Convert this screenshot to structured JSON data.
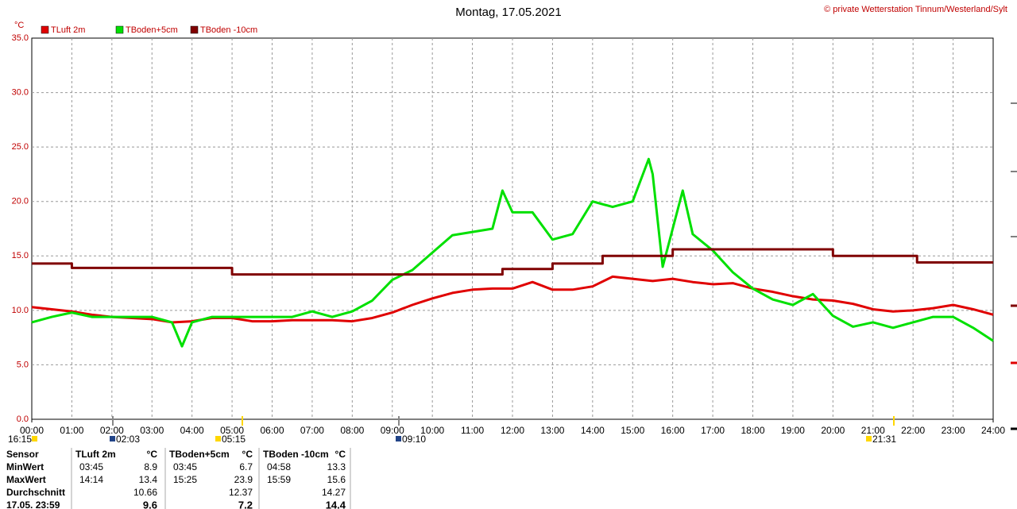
{
  "chart_data": {
    "type": "line",
    "title": "Montag, 17.05.2021",
    "copyright": "© private Wetterstation Tinnum/Westerland/Sylt",
    "y_unit": "°C",
    "grid": true,
    "ylim": [
      0,
      35
    ],
    "yticks": [
      {
        "value": 0,
        "label": "0.0"
      },
      {
        "value": 5,
        "label": "5.0"
      },
      {
        "value": 10,
        "label": "10.0"
      },
      {
        "value": 15,
        "label": "15.0"
      },
      {
        "value": 20,
        "label": "20.0"
      },
      {
        "value": 25,
        "label": "25.0"
      },
      {
        "value": 30,
        "label": "30.0"
      },
      {
        "value": 35,
        "label": "35.0"
      }
    ],
    "xlim": [
      0,
      24
    ],
    "xticks": [
      {
        "value": 0,
        "label": "00:00"
      },
      {
        "value": 1,
        "label": "01:00"
      },
      {
        "value": 2,
        "label": "02:00"
      },
      {
        "value": 3,
        "label": "03:00"
      },
      {
        "value": 4,
        "label": "04:00"
      },
      {
        "value": 5,
        "label": "05:00"
      },
      {
        "value": 6,
        "label": "06:00"
      },
      {
        "value": 7,
        "label": "07:00"
      },
      {
        "value": 8,
        "label": "08:00"
      },
      {
        "value": 9,
        "label": "09:00"
      },
      {
        "value": 10,
        "label": "10:00"
      },
      {
        "value": 11,
        "label": "11:00"
      },
      {
        "value": 12,
        "label": "12:00"
      },
      {
        "value": 13,
        "label": "13:00"
      },
      {
        "value": 14,
        "label": "14:00"
      },
      {
        "value": 15,
        "label": "15:00"
      },
      {
        "value": 16,
        "label": "16:00"
      },
      {
        "value": 17,
        "label": "17:00"
      },
      {
        "value": 18,
        "label": "18:00"
      },
      {
        "value": 19,
        "label": "19:00"
      },
      {
        "value": 20,
        "label": "20:00"
      },
      {
        "value": 21,
        "label": "21:00"
      },
      {
        "value": 22,
        "label": "22:00"
      },
      {
        "value": 23,
        "label": "23:00"
      },
      {
        "value": 24,
        "label": "24:00"
      }
    ],
    "series": [
      {
        "name": "TLuft 2m",
        "color": "#e00000",
        "x": [
          0,
          0.5,
          1,
          1.5,
          2,
          2.5,
          3,
          3.5,
          4,
          4.5,
          5,
          5.5,
          6,
          6.5,
          7,
          7.5,
          8,
          8.5,
          9,
          9.5,
          10,
          10.5,
          11,
          11.5,
          12,
          12.5,
          13,
          13.5,
          14,
          14.5,
          15,
          15.5,
          16,
          16.5,
          17,
          17.5,
          18,
          18.5,
          19,
          19.5,
          20,
          20.5,
          21,
          21.5,
          22,
          22.5,
          23,
          23.5,
          24
        ],
        "values": [
          10.3,
          10.1,
          9.9,
          9.6,
          9.4,
          9.3,
          9.2,
          8.9,
          9.0,
          9.3,
          9.3,
          9.0,
          9.0,
          9.1,
          9.1,
          9.1,
          9.0,
          9.3,
          9.8,
          10.5,
          11.1,
          11.6,
          11.9,
          12.0,
          12.0,
          12.6,
          11.9,
          11.9,
          12.2,
          13.1,
          12.9,
          12.7,
          12.9,
          12.6,
          12.4,
          12.5,
          12.0,
          11.7,
          11.3,
          11.0,
          10.9,
          10.6,
          10.1,
          9.9,
          10.0,
          10.2,
          10.5,
          10.1,
          9.6
        ]
      },
      {
        "name": "TBoden+5cm",
        "color": "#00e000",
        "x": [
          0,
          0.5,
          1,
          1.5,
          2,
          2.5,
          3,
          3.5,
          3.75,
          4,
          4.5,
          5,
          5.5,
          6,
          6.5,
          7,
          7.5,
          8,
          8.5,
          9,
          9.5,
          10,
          10.5,
          11,
          11.5,
          11.75,
          12,
          12.5,
          13,
          13.5,
          14,
          14.5,
          15,
          15.4,
          15.5,
          15.75,
          16,
          16.25,
          16.5,
          17,
          17.5,
          18,
          18.5,
          19,
          19.5,
          20,
          20.5,
          21,
          21.5,
          22,
          22.5,
          23,
          23.5,
          24
        ],
        "values": [
          8.9,
          9.4,
          9.8,
          9.4,
          9.4,
          9.4,
          9.4,
          8.9,
          6.7,
          8.9,
          9.4,
          9.4,
          9.4,
          9.4,
          9.4,
          9.9,
          9.4,
          9.9,
          10.9,
          12.8,
          13.7,
          15.3,
          16.9,
          17.2,
          17.5,
          21.0,
          19.0,
          19.0,
          16.5,
          17.0,
          20.0,
          19.5,
          20.0,
          23.9,
          22.5,
          14.0,
          17.5,
          21.0,
          17.0,
          15.5,
          13.5,
          12.0,
          11.0,
          10.5,
          11.5,
          9.5,
          8.5,
          8.9,
          8.4,
          8.9,
          9.4,
          9.4,
          8.4,
          7.2
        ]
      },
      {
        "name": "TBoden -10cm",
        "color": "#800000",
        "x": [
          0,
          1,
          1,
          5,
          5,
          11.75,
          11.75,
          13,
          13,
          14.25,
          14.25,
          16,
          16,
          20,
          20,
          22.1,
          22.1,
          24
        ],
        "values": [
          14.3,
          14.3,
          13.9,
          13.9,
          13.3,
          13.3,
          13.8,
          13.8,
          14.3,
          14.3,
          15.0,
          15.0,
          15.6,
          15.6,
          15.0,
          15.0,
          14.4,
          14.4
        ]
      }
    ],
    "events": [
      "16:15",
      "02:03",
      "05:15",
      "09:10",
      "21:31"
    ]
  },
  "table": {
    "headers": [
      "Sensor",
      "TLuft 2m",
      "°C",
      "TBoden+5cm",
      "°C",
      "TBoden -10cm",
      "°C"
    ],
    "rows": [
      {
        "label": "MinWert",
        "cells": [
          [
            "03:45",
            8.9
          ],
          [
            "03:45",
            6.7
          ],
          [
            "04:58",
            13.3
          ]
        ]
      },
      {
        "label": "MaxWert",
        "cells": [
          [
            "14:14",
            13.4
          ],
          [
            "15:25",
            23.9
          ],
          [
            "15:59",
            15.6
          ]
        ]
      },
      {
        "label": "Durchschnitt",
        "cells": [
          [
            null,
            10.66
          ],
          [
            null,
            12.37
          ],
          [
            null,
            14.27
          ]
        ]
      },
      {
        "label": "17.05. 23:59",
        "cells": [
          [
            null,
            9.6
          ],
          [
            null,
            7.2
          ],
          [
            null,
            14.4
          ]
        ]
      }
    ]
  }
}
